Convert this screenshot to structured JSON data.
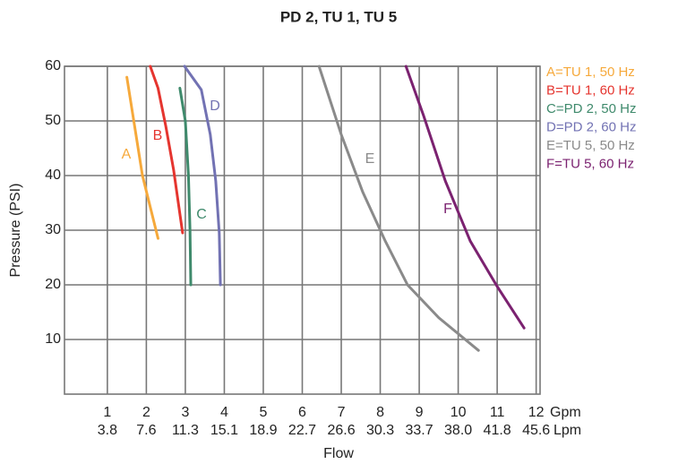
{
  "chart_data": {
    "type": "line",
    "title": "PD 2, TU 1, TU 5",
    "x_label": "Flow",
    "y_label": "Pressure (PSI)",
    "x_unit": "Gpm",
    "x2_unit": "Lpm",
    "xlim": [
      -0.1,
      12.1
    ],
    "ylim": [
      0,
      60
    ],
    "xticks": [
      1,
      2,
      3,
      4,
      5,
      6,
      7,
      8,
      9,
      10,
      11,
      12
    ],
    "x2_labels": [
      "3.8",
      "7.6",
      "11.3",
      "15.1",
      "18.9",
      "22.7",
      "26.6",
      "30.3",
      "33.7",
      "38.0",
      "41.8",
      "45.6"
    ],
    "yticks": [
      10,
      20,
      30,
      40,
      50,
      60
    ],
    "grid": true,
    "legend": "right",
    "series": [
      {
        "name": "A=TU 1, 50 Hz",
        "label": "A",
        "color": "#f6a93b",
        "x": [
          1.5,
          1.9,
          2.3
        ],
        "values": [
          58,
          40,
          28.5
        ]
      },
      {
        "name": "B=TU 1, 60 Hz",
        "label": "B",
        "color": "#e5352f",
        "x": [
          2.1,
          2.3,
          2.5,
          2.7,
          2.93
        ],
        "values": [
          60,
          56,
          49,
          41,
          29.5
        ]
      },
      {
        "name": "C=PD 2, 50 Hz",
        "label": "C",
        "color": "#3f8a6c",
        "x": [
          2.86,
          3.0,
          3.08,
          3.12,
          3.14
        ],
        "values": [
          56,
          50,
          40,
          30,
          20
        ]
      },
      {
        "name": "D=PD 2, 60 Hz",
        "label": "D",
        "color": "#7272b3",
        "x": [
          2.98,
          3.41,
          3.64,
          3.78,
          3.87,
          3.9
        ],
        "values": [
          60,
          55.7,
          47.5,
          39,
          29.5,
          20
        ]
      },
      {
        "name": "E=TU 5, 50 Hz",
        "label": "E",
        "color": "#8a8a8a",
        "x": [
          6.43,
          7.0,
          7.55,
          8.13,
          8.7,
          9.5,
          10.52
        ],
        "values": [
          60,
          47.5,
          37,
          28,
          20,
          14,
          8
        ]
      },
      {
        "name": "F=TU 5, 60 Hz",
        "label": "F",
        "color": "#7b2270",
        "x": [
          8.66,
          9.11,
          9.67,
          10.31,
          11.0,
          11.69
        ],
        "values": [
          60,
          51,
          39,
          28,
          19.7,
          12.1
        ]
      }
    ]
  }
}
